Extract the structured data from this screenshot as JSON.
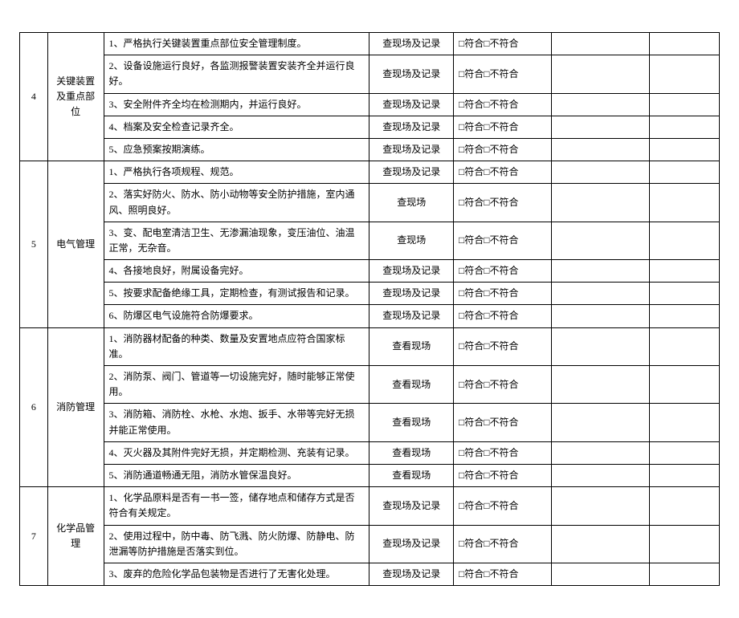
{
  "result_label": "□符合□不符合",
  "sections": [
    {
      "index": "4",
      "category": "关键装置及重点部位",
      "rows": [
        {
          "desc": "1、严格执行关键装置重点部位安全管理制度。",
          "method": "查现场及记录"
        },
        {
          "desc": "2、设备设施运行良好，各监测报警装置安装齐全并运行良好。",
          "method": "查现场及记录"
        },
        {
          "desc": "3、安全附件齐全均在检测期内，并运行良好。",
          "method": "查现场及记录"
        },
        {
          "desc": "4、档案及安全检查记录齐全。",
          "method": "查现场及记录"
        },
        {
          "desc": "5、应急预案按期演练。",
          "method": "查现场及记录"
        }
      ]
    },
    {
      "index": "5",
      "category": "电气管理",
      "rows": [
        {
          "desc": "1、严格执行各项规程、规范。",
          "method": "查现场及记录"
        },
        {
          "desc": "2、落实好防火、防水、防小动物等安全防护措施，室内通风、照明良好。",
          "method": "查现场"
        },
        {
          "desc": "3、变、配电室清洁卫生、无渗漏油现象，变压油位、油温正常，无杂音。",
          "method": "查现场"
        },
        {
          "desc": "4、各接地良好，附属设备完好。",
          "method": "查现场及记录"
        },
        {
          "desc": "5、按要求配备绝缘工具，定期检查，有测试报告和记录。",
          "method": "查现场及记录"
        },
        {
          "desc": "6、防爆区电气设施符合防爆要求。",
          "method": "查现场及记录"
        }
      ]
    },
    {
      "index": "6",
      "category": "消防管理",
      "rows": [
        {
          "desc": "1、消防器材配备的种类、数量及安置地点应符合国家标准。",
          "method": "查看现场"
        },
        {
          "desc": "2、消防泵、阀门、管道等一切设施完好，随时能够正常使用。",
          "method": "查看现场"
        },
        {
          "desc": "3、消防箱、消防栓、水枪、水炮、扳手、水带等完好无损并能正常使用。",
          "method": "查看现场"
        },
        {
          "desc": "4、灭火器及其附件完好无损，并定期检测、充装有记录。",
          "method": "查看现场"
        },
        {
          "desc": "5、消防通道畅通无阻，消防水管保温良好。",
          "method": "查看现场"
        }
      ]
    },
    {
      "index": "7",
      "category": "化学品管理",
      "rows": [
        {
          "desc": "1、化学品原料是否有一书一签，储存地点和储存方式是否符合有关规定。",
          "method": "查现场及记录"
        },
        {
          "desc": "2、使用过程中，防中毒、防飞溅、防火防爆、防静电、防泄漏等防护措施是否落实到位。",
          "method": "查现场及记录"
        },
        {
          "desc": "3、废弃的危险化学品包装物是否进行了无害化处理。",
          "method": "查现场及记录"
        }
      ]
    }
  ]
}
